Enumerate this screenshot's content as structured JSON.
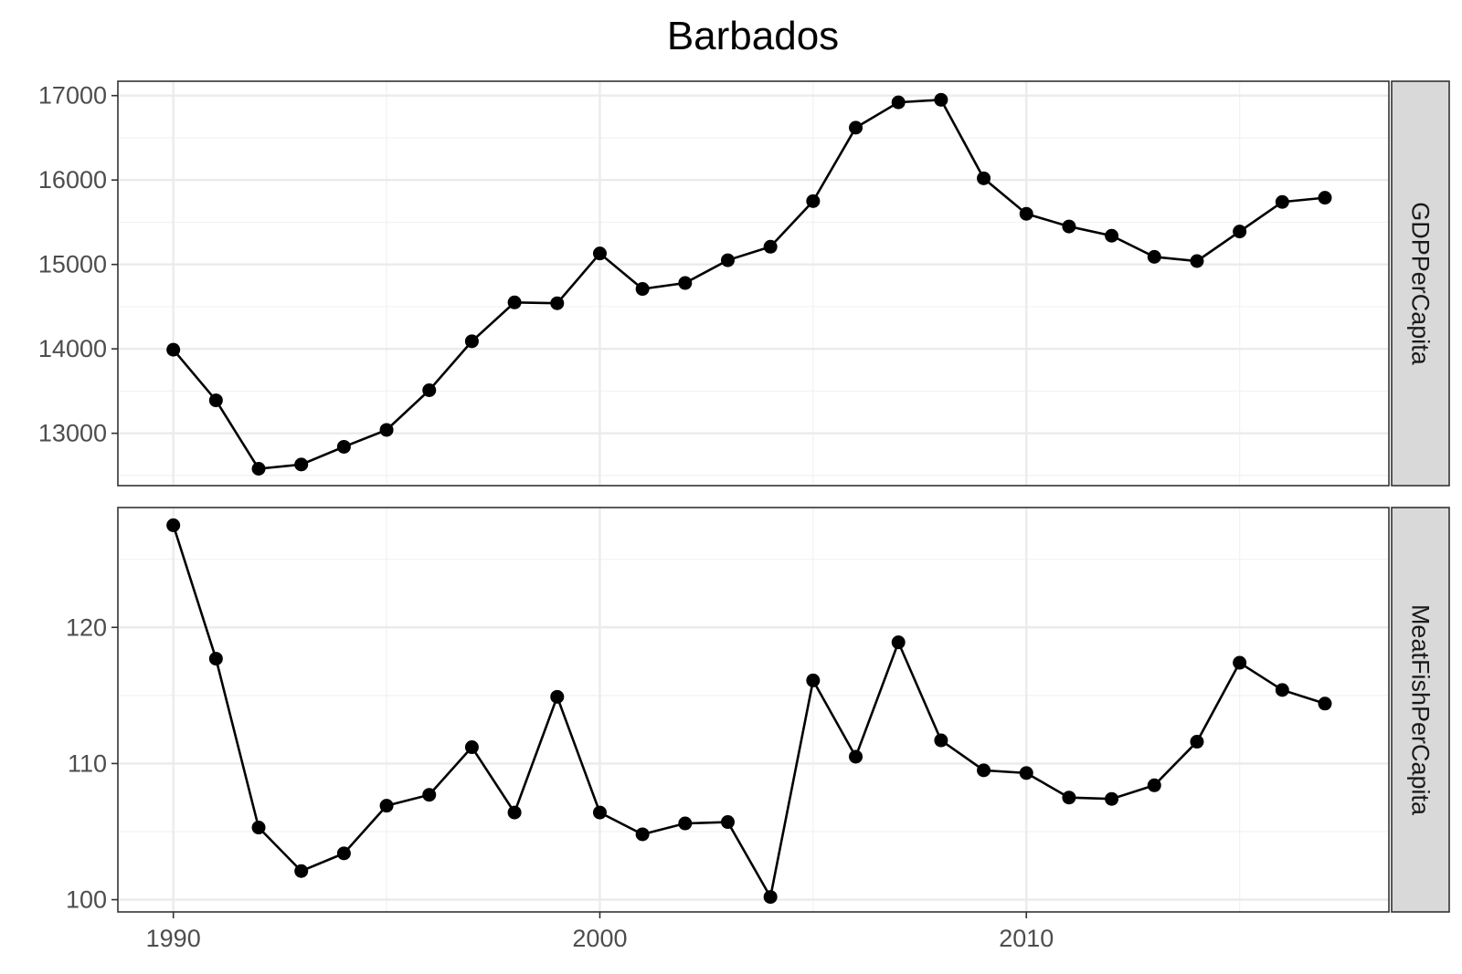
{
  "chart_data": {
    "type": "line",
    "title": "Barbados",
    "x": [
      1990,
      1991,
      1992,
      1993,
      1994,
      1995,
      1996,
      1997,
      1998,
      1999,
      2000,
      2001,
      2002,
      2003,
      2004,
      2005,
      2006,
      2007,
      2008,
      2009,
      2010,
      2011,
      2012,
      2013,
      2014,
      2015,
      2016,
      2017
    ],
    "xlim": [
      1988.7,
      2018.5
    ],
    "xticks": [
      1990,
      2000,
      2010
    ],
    "grid": true,
    "panels": [
      {
        "label": "GDPPerCapita",
        "ylim": [
          12380,
          17170
        ],
        "yticks": [
          13000,
          14000,
          15000,
          16000,
          17000
        ],
        "values": [
          13990,
          13390,
          12580,
          12630,
          12840,
          13040,
          13510,
          14090,
          14550,
          14540,
          15130,
          14710,
          14780,
          15050,
          15210,
          15750,
          16620,
          16920,
          16950,
          16020,
          15600,
          15450,
          15340,
          15090,
          15040,
          15390,
          15740,
          15790
        ]
      },
      {
        "label": "MeatFishPerCapita",
        "ylim": [
          99.1,
          128.8
        ],
        "yticks": [
          100,
          110,
          120
        ],
        "values": [
          127.5,
          117.7,
          105.3,
          102.1,
          103.4,
          106.9,
          107.7,
          111.2,
          106.4,
          114.9,
          106.4,
          104.8,
          105.6,
          105.7,
          100.2,
          116.1,
          110.5,
          118.9,
          111.7,
          109.5,
          109.3,
          107.5,
          107.4,
          108.4,
          111.6,
          117.4,
          115.4,
          114.4
        ]
      }
    ]
  }
}
